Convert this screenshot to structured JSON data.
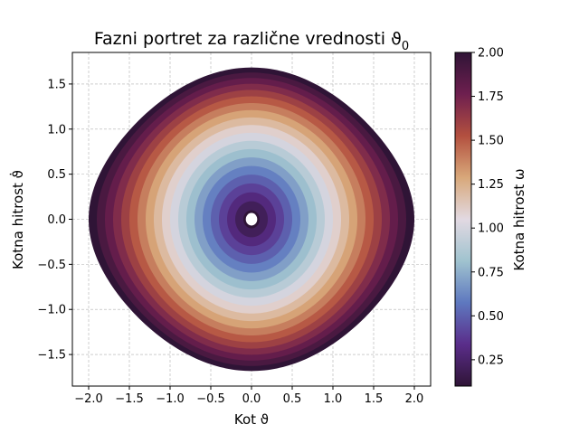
{
  "chart_data": {
    "type": "scatter",
    "title": "Fazni portret za različne vrednosti ϑ",
    "title_subscript": "0",
    "xlabel": "Kot ϑ",
    "ylabel": "Kotna hitrost ϑ̇",
    "xlim": [
      -2.2,
      2.2
    ],
    "ylim": [
      -1.85,
      1.85
    ],
    "xticks": [
      -2.0,
      -1.5,
      -1.0,
      -0.5,
      0.0,
      0.5,
      1.0,
      1.5,
      2.0
    ],
    "xtick_labels": [
      "−2.0",
      "−1.5",
      "−1.0",
      "−0.5",
      "0.0",
      "0.5",
      "1.0",
      "1.5",
      "2.0"
    ],
    "yticks": [
      -1.5,
      -1.0,
      -0.5,
      0.0,
      0.5,
      1.0,
      1.5
    ],
    "ytick_labels": [
      "−1.5",
      "−1.0",
      "−0.5",
      "0.0",
      "0.5",
      "1.0",
      "1.5"
    ],
    "grid": true,
    "colormap": "twilight_shifted",
    "series": [
      {
        "theta0": 0.1,
        "omega": 0.1
      },
      {
        "theta0": 0.2,
        "omega": 0.2
      },
      {
        "theta0": 0.3,
        "omega": 0.3
      },
      {
        "theta0": 0.4,
        "omega": 0.4
      },
      {
        "theta0": 0.5,
        "omega": 0.5
      },
      {
        "theta0": 0.6,
        "omega": 0.6
      },
      {
        "theta0": 0.7,
        "omega": 0.7
      },
      {
        "theta0": 0.8,
        "omega": 0.8
      },
      {
        "theta0": 0.9,
        "omega": 0.9
      },
      {
        "theta0": 1.0,
        "omega": 1.0
      },
      {
        "theta0": 1.1,
        "omega": 1.1
      },
      {
        "theta0": 1.2,
        "omega": 1.2
      },
      {
        "theta0": 1.3,
        "omega": 1.3
      },
      {
        "theta0": 1.4,
        "omega": 1.4
      },
      {
        "theta0": 1.5,
        "omega": 1.5
      },
      {
        "theta0": 1.6,
        "omega": 1.6
      },
      {
        "theta0": 1.7,
        "omega": 1.7
      },
      {
        "theta0": 1.8,
        "omega": 1.8
      },
      {
        "theta0": 1.9,
        "omega": 1.9
      },
      {
        "theta0": 2.0,
        "omega": 2.0
      }
    ],
    "colorbar": {
      "label": "Kotna hitrost ω",
      "range": [
        0.1,
        2.0
      ],
      "ticks": [
        0.25,
        0.5,
        0.75,
        1.0,
        1.25,
        1.5,
        1.75,
        2.0
      ],
      "tick_labels": [
        "0.25",
        "0.50",
        "0.75",
        "1.00",
        "1.25",
        "1.50",
        "1.75",
        "2.00"
      ],
      "colors": [
        "#2f1436",
        "#5a2d8a",
        "#5e78bf",
        "#a0c3cf",
        "#e2d9e2",
        "#d8a87a",
        "#b3503f",
        "#6e1f4f",
        "#2f1436"
      ]
    }
  }
}
